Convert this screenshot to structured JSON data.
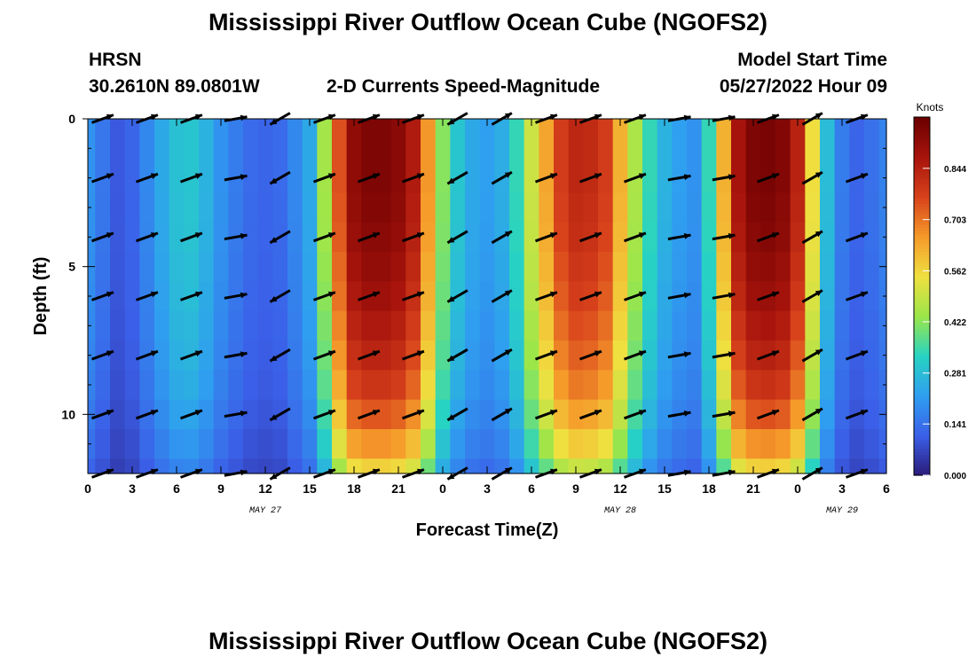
{
  "header": {
    "title": "Mississippi River Outflow Ocean Cube (NGOFS2)",
    "station": "HRSN",
    "coords": "30.2610N  89.0801W",
    "subtitle": "2-D Currents Speed-Magnitude",
    "model_start_label": "Model Start Time",
    "model_start_value": "05/27/2022 Hour 09"
  },
  "footer": {
    "title": "Mississippi River Outflow Ocean Cube (NGOFS2)"
  },
  "chart_data": {
    "type": "heatmap",
    "title": "2-D Currents Speed-Magnitude",
    "xlabel": "Forecast Time(Z)",
    "ylabel": "Depth (ft)",
    "colorbar_label": "Knots",
    "colorbar_ticks": [
      "0.000",
      "0.141",
      "0.281",
      "0.422",
      "0.562",
      "0.703",
      "0.844"
    ],
    "colorbar_range": [
      0,
      0.985
    ],
    "x_range_hours": [
      0,
      54
    ],
    "y_range_ft": [
      0,
      12
    ],
    "x_tick_labels": [
      "0",
      "3",
      "6",
      "9",
      "12",
      "15",
      "18",
      "21",
      "0",
      "3",
      "6",
      "9",
      "12",
      "15",
      "18",
      "21",
      "0",
      "3",
      "6"
    ],
    "x_date_labels": [
      {
        "label": "MAY 27",
        "hour": 12
      },
      {
        "label": "MAY 28",
        "hour": 36
      },
      {
        "label": "MAY 29",
        "hour": 51
      }
    ],
    "y_tick_labels": [
      {
        "label": "0",
        "value": 0
      },
      {
        "label": "5",
        "value": 5
      },
      {
        "label": "10",
        "value": 10
      }
    ],
    "colormap": [
      "#2a1a78",
      "#3b5fe8",
      "#2f9ef0",
      "#27d3c3",
      "#9be64a",
      "#f0e040",
      "#f59a2a",
      "#d8421c",
      "#a8140c",
      "#6a0000"
    ],
    "hours": [
      0,
      1,
      2,
      3,
      4,
      5,
      6,
      7,
      8,
      9,
      10,
      11,
      12,
      13,
      14,
      15,
      16,
      17,
      18,
      19,
      20,
      21,
      22,
      23,
      24,
      25,
      26,
      27,
      28,
      29,
      30,
      31,
      32,
      33,
      34,
      35,
      36,
      37,
      38,
      39,
      40,
      41,
      42,
      43,
      44,
      45,
      46,
      47,
      48,
      49,
      50,
      51,
      52,
      53,
      54
    ],
    "depths_ft": [
      0,
      1,
      2,
      3,
      4,
      5,
      6,
      7,
      8,
      9,
      10,
      11,
      12
    ],
    "speed_profile_knots": [
      0.2,
      0.15,
      0.1,
      0.12,
      0.18,
      0.24,
      0.29,
      0.3,
      0.26,
      0.2,
      0.16,
      0.13,
      0.12,
      0.13,
      0.18,
      0.24,
      0.45,
      0.75,
      0.92,
      0.95,
      0.95,
      0.93,
      0.86,
      0.66,
      0.42,
      0.3,
      0.24,
      0.22,
      0.25,
      0.34,
      0.5,
      0.64,
      0.78,
      0.83,
      0.82,
      0.78,
      0.62,
      0.46,
      0.34,
      0.26,
      0.22,
      0.2,
      0.34,
      0.62,
      0.88,
      0.95,
      0.96,
      0.94,
      0.84,
      0.55,
      0.28,
      0.16,
      0.12,
      0.14,
      0.17
    ],
    "depth_factor": [
      1.0,
      1.0,
      1.0,
      0.99,
      0.98,
      0.96,
      0.94,
      0.91,
      0.88,
      0.84,
      0.78,
      0.7,
      0.6
    ],
    "arrow_hours": [
      1,
      4,
      7,
      10,
      13,
      16,
      19,
      22,
      25,
      28,
      31,
      34,
      37,
      40,
      43,
      46,
      49,
      52
    ],
    "arrow_depths_ft": [
      0,
      2,
      4,
      6,
      8,
      10,
      12
    ],
    "arrow_angles_deg": [
      -20,
      -20,
      -20,
      -10,
      150,
      -20,
      -20,
      -20,
      150,
      -30,
      -20,
      -20,
      -20,
      -10,
      -10,
      -20,
      -30,
      -20
    ]
  }
}
